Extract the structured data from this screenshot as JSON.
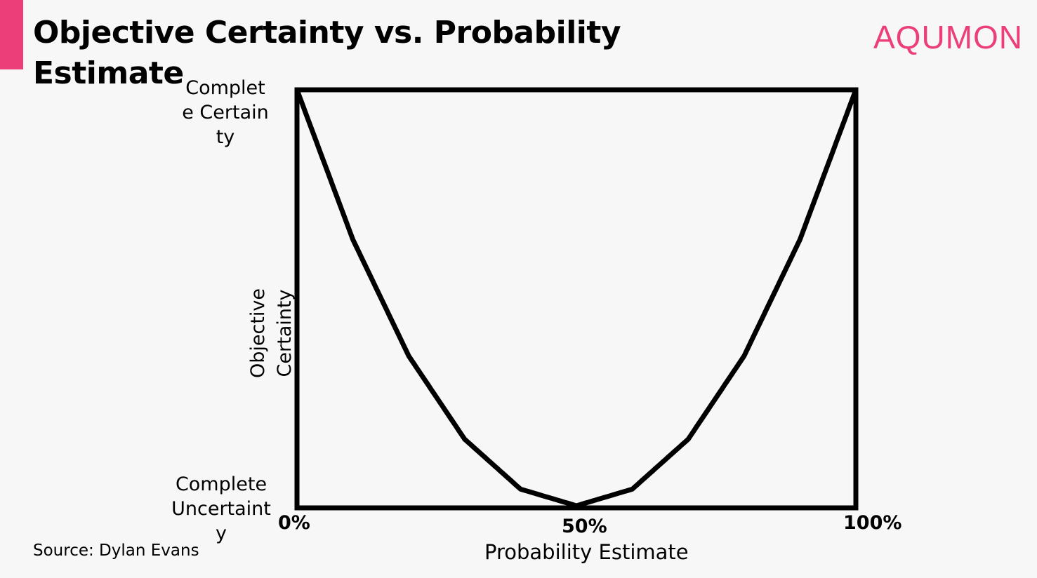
{
  "title": "Objective Certainty vs. Probability Estimate",
  "logo": "AQUMON",
  "source": "Source: Dylan Evans",
  "colors": {
    "accent": "#ec3f7a",
    "line": "#000000",
    "background": "#f7f7f7"
  },
  "chart_data": {
    "type": "line",
    "title": "Objective Certainty vs. Probability Estimate",
    "xlabel": "Probability Estimate",
    "ylabel": "Objective Certainty",
    "x_ticks": [
      "0%",
      "50%",
      "100%"
    ],
    "y_ticks": [
      "Complete Uncertainty",
      "Complete Certainty"
    ],
    "xlim": [
      0,
      100
    ],
    "ylim": [
      0,
      1
    ],
    "grid": false,
    "series": [
      {
        "x": [
          0,
          10,
          20,
          30,
          40,
          50,
          60,
          70,
          80,
          90,
          100
        ],
        "y": [
          1,
          0.64,
          0.36,
          0.16,
          0.04,
          0,
          0.04,
          0.16,
          0.36,
          0.64,
          1
        ]
      }
    ]
  }
}
